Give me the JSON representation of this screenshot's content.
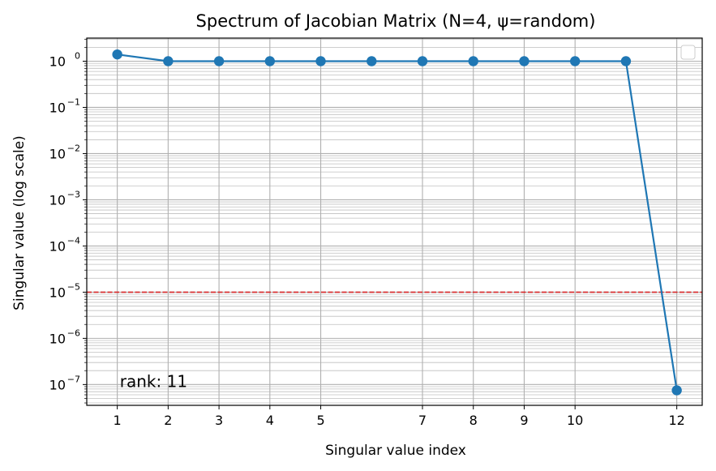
{
  "chart_data": {
    "type": "line",
    "title": "Spectrum of Jacobian Matrix (N=4, ψ=random)",
    "xlabel": "Singular value index",
    "ylabel": "Singular value (log scale)",
    "y_scale": "log",
    "xlim": [
      0.4,
      12.5
    ],
    "ylim_exponent": [
      -7.45,
      0.5
    ],
    "x_ticks": [
      1,
      2,
      3,
      4,
      5,
      7,
      8,
      9,
      10,
      12
    ],
    "x_tick_labels": [
      "1",
      "2",
      "3",
      "4",
      "5",
      "7",
      "8",
      "9",
      "10",
      "12"
    ],
    "y_ticks_exponents": [
      0,
      -1,
      -2,
      -3,
      -4,
      -5,
      -6,
      -7
    ],
    "grid": true,
    "legend": "top-right (empty)",
    "series": [
      {
        "color": "#1f77b4",
        "marker": "circle",
        "x": [
          1,
          2,
          3,
          4,
          5,
          6,
          7,
          8,
          9,
          10,
          11,
          12
        ],
        "y": [
          1.4,
          1.0,
          1.0,
          1.0,
          1.0,
          1.0,
          1.0,
          1.0,
          1.0,
          1.0,
          1.0,
          7.5e-08
        ]
      }
    ],
    "threshold_line": {
      "y": 1e-05,
      "color": "#d62728",
      "style": "dashed"
    },
    "annotation": {
      "text": "rank: 11",
      "x": 1.05,
      "y": 1e-07
    }
  }
}
